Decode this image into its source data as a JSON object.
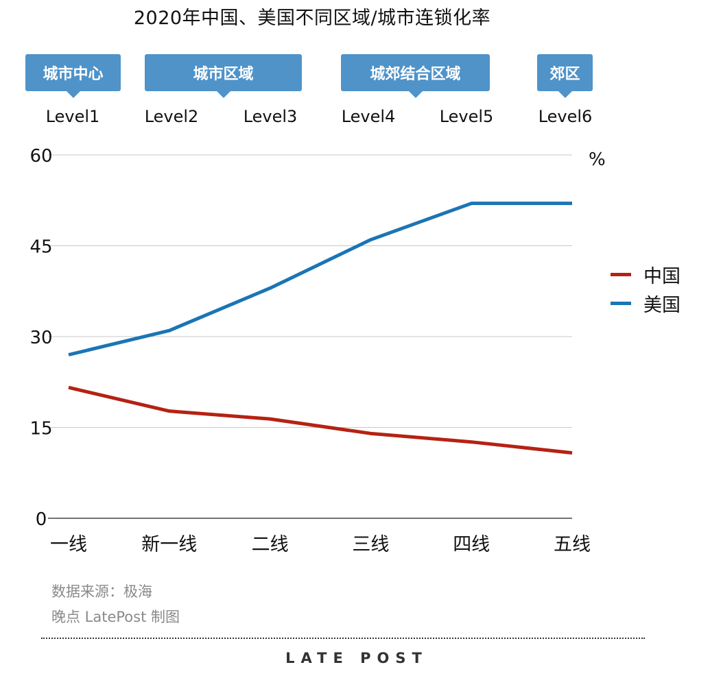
{
  "title": "2020年中国、美国不同区域/城市连锁化率",
  "zones": [
    {
      "label": "城市中心"
    },
    {
      "label": "城市区域"
    },
    {
      "label": "城郊结合区域"
    },
    {
      "label": "郊区"
    }
  ],
  "levels": [
    "Level1",
    "Level2",
    "Level3",
    "Level4",
    "Level5",
    "Level6"
  ],
  "unit": "%",
  "legend": [
    {
      "label": "中国",
      "color": "#b52213"
    },
    {
      "label": "美国",
      "color": "#1a75b5"
    }
  ],
  "chart_data": {
    "type": "line",
    "title": "2020年中国、美国不同区域/城市连锁化率",
    "categories": [
      "一线",
      "新一线",
      "二线",
      "三线",
      "四线",
      "五线"
    ],
    "ylim": [
      0,
      60
    ],
    "yticks": [
      0,
      15,
      30,
      45,
      60
    ],
    "grid": true,
    "legend_position": "right",
    "series": [
      {
        "name": "中国",
        "color": "#b52213",
        "values": [
          21.6,
          17.7,
          16.4,
          14.0,
          12.6,
          10.8
        ]
      },
      {
        "name": "美国",
        "color": "#1a75b5",
        "values": [
          27.0,
          31.0,
          38.0,
          46.0,
          52.0,
          52.0
        ]
      }
    ]
  },
  "source": {
    "data_source": "数据来源：极海",
    "credit": "晚点 LatePost 制图"
  },
  "brand": "LATE POST"
}
